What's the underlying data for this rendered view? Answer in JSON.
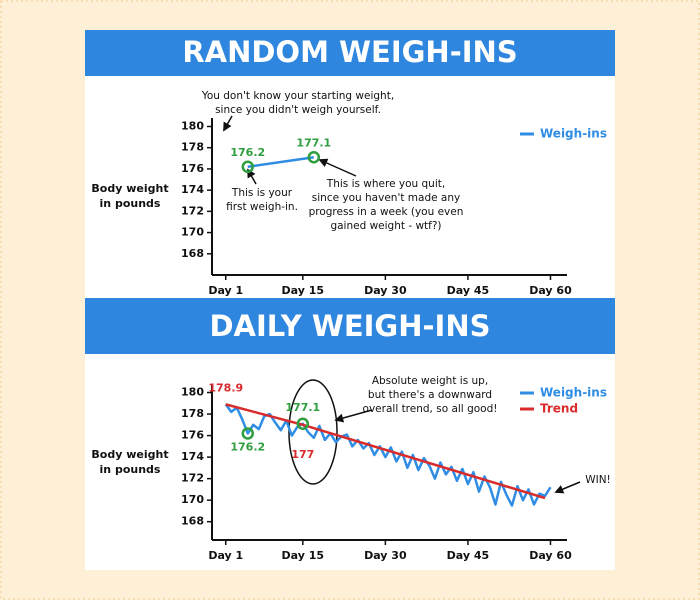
{
  "chart_data": [
    {
      "type": "line",
      "title": "RANDOM WEIGH-INS",
      "ylabel": [
        "Body weight",
        "in pounds"
      ],
      "xlim": [
        -1.5,
        63
      ],
      "xticks": [
        {
          "value": 1,
          "label": "Day 1"
        },
        {
          "value": 15,
          "label": "Day 15"
        },
        {
          "value": 30,
          "label": "Day 30"
        },
        {
          "value": 45,
          "label": "Day 45"
        },
        {
          "value": 60,
          "label": "Day 60"
        }
      ],
      "ylim": [
        166,
        180.8
      ],
      "yticks": [
        168,
        170,
        172,
        174,
        176,
        178,
        180
      ],
      "legend": "upper right",
      "series": [
        {
          "name": "Weigh-ins",
          "color": "#2f8de4",
          "x": [
            5,
            17
          ],
          "values": [
            176.2,
            177.1
          ]
        }
      ],
      "annotations": [
        {
          "lines": [
            "You don't know your starting weight,",
            "since you didn't weigh yourself."
          ]
        },
        {
          "lines": [
            "This is your",
            "first weigh-in."
          ]
        },
        {
          "lines": [
            "This is where you quit,",
            "since you haven't made any",
            "progress in a week (you even",
            "gained weight - wtf?)"
          ]
        }
      ]
    },
    {
      "type": "line",
      "title": "DAILY WEIGH-INS",
      "ylabel": [
        "Body weight",
        "in pounds"
      ],
      "xlim": [
        -1.5,
        63
      ],
      "xticks": [
        {
          "value": 1,
          "label": "Day 1"
        },
        {
          "value": 15,
          "label": "Day 15"
        },
        {
          "value": 30,
          "label": "Day 30"
        },
        {
          "value": 45,
          "label": "Day 45"
        },
        {
          "value": 60,
          "label": "Day 60"
        }
      ],
      "ylim": [
        166.3,
        180.7
      ],
      "yticks": [
        168,
        170,
        172,
        174,
        176,
        178,
        180
      ],
      "legend": "upper right",
      "series": [
        {
          "name": "Weigh-ins",
          "color": "#2f8de4",
          "x": [
            1,
            2,
            3,
            4,
            5,
            6,
            7,
            8,
            9,
            10,
            11,
            12,
            13,
            14,
            15,
            16,
            17,
            18,
            19,
            20,
            21,
            22,
            23,
            24,
            25,
            26,
            27,
            28,
            29,
            30,
            31,
            32,
            33,
            34,
            35,
            36,
            37,
            38,
            39,
            40,
            41,
            42,
            43,
            44,
            45,
            46,
            47,
            48,
            49,
            50,
            51,
            52,
            53,
            54,
            55,
            56,
            57,
            58,
            59,
            60
          ],
          "values": [
            178.9,
            178.2,
            178.6,
            177.5,
            176.2,
            177.0,
            176.6,
            177.8,
            178.0,
            177.2,
            176.5,
            177.4,
            176.0,
            176.8,
            177.1,
            176.3,
            175.8,
            176.9,
            175.6,
            176.2,
            175.4,
            175.9,
            176.1,
            175.0,
            175.6,
            174.8,
            175.3,
            174.2,
            175.0,
            174.0,
            174.9,
            173.6,
            174.5,
            173.0,
            174.2,
            172.8,
            173.9,
            173.2,
            172.0,
            173.5,
            172.4,
            173.1,
            171.8,
            172.9,
            171.5,
            172.6,
            170.8,
            172.2,
            171.2,
            169.6,
            171.7,
            170.5,
            169.5,
            171.3,
            170.0,
            171.0,
            169.6,
            170.6,
            170.4,
            171.2
          ]
        },
        {
          "name": "Trend",
          "color": "#d92b2b",
          "x": [
            1,
            15,
            59
          ],
          "values": [
            178.9,
            177,
            170.2
          ]
        }
      ],
      "annotations": [
        {
          "lines": [
            "Absolute weight is up,",
            "but there's a downward",
            "overall trend, so all good!"
          ]
        },
        {
          "lines": [
            "WIN!"
          ]
        }
      ]
    }
  ]
}
